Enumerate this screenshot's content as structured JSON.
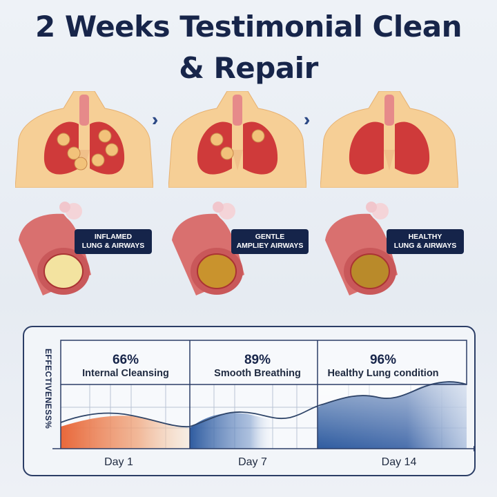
{
  "title_line1": "2 Weeks Testimonial Clean",
  "title_line2": "& Repair",
  "stages": [
    {
      "label_line1": "INFLAMED",
      "label_line2": "LUNG & AIRWAYS"
    },
    {
      "label_line1": "GENTLE",
      "label_line2": "AMPLIEY AIRWAYS"
    },
    {
      "label_line1": "HEALTHY",
      "label_line2": "LUNG & AIRWAYS"
    }
  ],
  "arrow_icon": "double-chevron-right",
  "chart": {
    "ylabel": "EFFECTIVENESS%",
    "columns": [
      {
        "percent": "66%",
        "caption": "Internal Cleansing",
        "day": "Day 1",
        "color": "#e8703f"
      },
      {
        "percent": "89%",
        "caption": "Smooth Breathing",
        "day": "Day 7",
        "color": "#3b64a6"
      },
      {
        "percent": "96%",
        "caption": "Healthy Lung condition",
        "day": "Day 14",
        "color": "#3b64a6"
      }
    ]
  },
  "colors": {
    "navy": "#17254a",
    "skin": "#f6cf96",
    "lung": "#cf3a3a",
    "airway": "#d9706f"
  }
}
